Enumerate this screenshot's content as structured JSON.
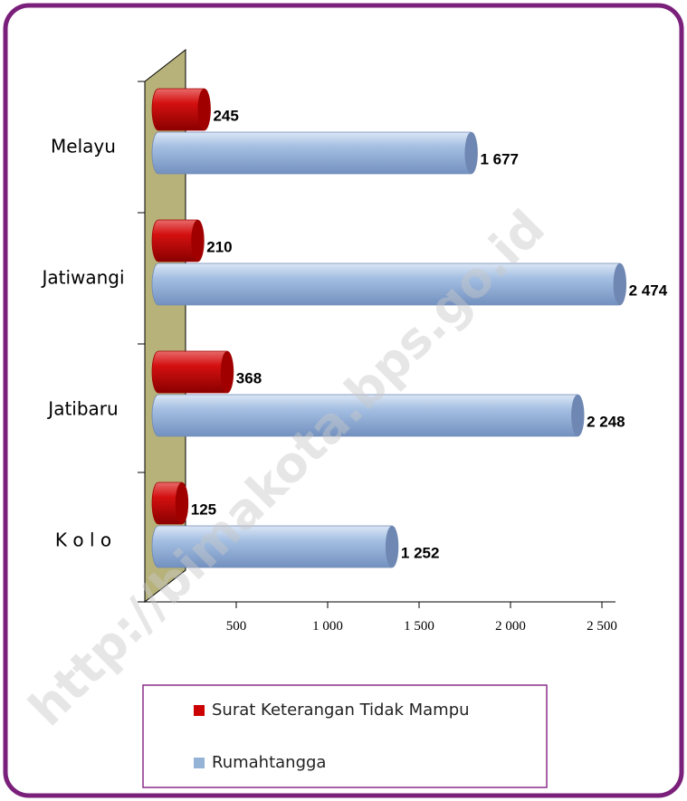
{
  "chart_data": {
    "type": "bar",
    "orientation": "horizontal",
    "categories": [
      "Melayu",
      "Jatiwangi",
      "Jatibaru",
      "K o l o"
    ],
    "series": [
      {
        "name": "Surat Keterangan Tidak Mampu",
        "color": "#cc0000",
        "values": [
          245,
          210,
          368,
          125
        ]
      },
      {
        "name": "Rumahtangga",
        "color": "#95b3d7",
        "values": [
          1677,
          2474,
          2248,
          1252
        ],
        "value_labels": [
          "1 677",
          "2 474",
          "2 248",
          "1 252"
        ]
      }
    ],
    "xlim": [
      0,
      2500
    ],
    "xticks": [
      {
        "value": 500,
        "label": "500"
      },
      {
        "value": 1000,
        "label": "1 000"
      },
      {
        "value": 1500,
        "label": "1 500"
      },
      {
        "value": 2000,
        "label": "2 000"
      },
      {
        "value": 2500,
        "label": "2 500"
      }
    ],
    "watermark": "http://bimakota.bps.go.id"
  }
}
